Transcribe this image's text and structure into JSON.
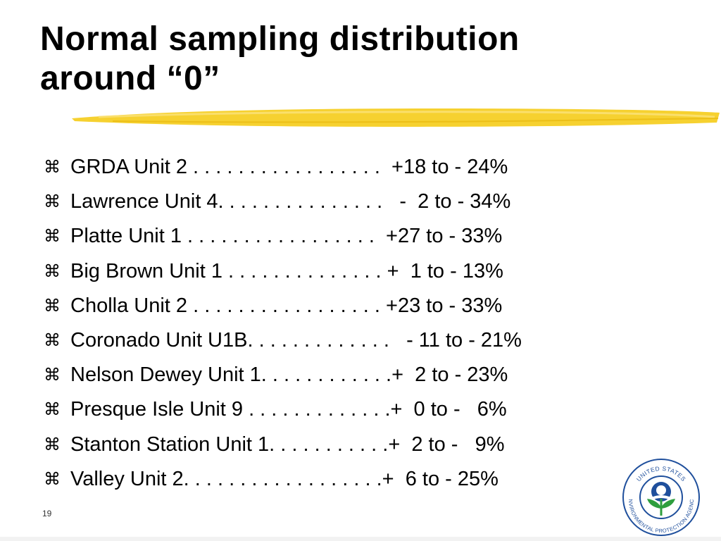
{
  "slide": {
    "title_line1": "Normal sampling distribution",
    "title_line2": "around “0”",
    "bullet_glyph": "⌘",
    "items": [
      "GRDA Unit 2 . . . . . . . . . . . . . . . . .  +18 to - 24%",
      "Lawrence Unit 4. . . . . . . . . . . . . . .   -  2 to - 34%",
      "Platte Unit 1 . . . . . . . . . . . . . . . . .  +27 to - 33%",
      "Big Brown Unit 1 . . . . . . . . . . . . . . +  1 to - 13%",
      "Cholla Unit 2 . . . . . . . . . . . . . . . . . +23 to - 33%",
      "Coronado Unit U1B. . . . . . . . . . . . .   - 11 to - 21%",
      "Nelson Dewey Unit 1. . . . . . . . . . . .+  2 to - 23%",
      "Presque Isle Unit 9 . . . . . . . . . . . . .+  0 to -   6%",
      "Stanton Station Unit 1. . . . . . . . . . .+  2 to -   9%",
      "Valley Unit 2. . . . . . . . . . . . . . . . . .+  6 to - 25%"
    ],
    "slide_number": "19"
  },
  "logo": {
    "text_top": "UNITED STATES",
    "text_bottom": "ENVIRONMENTAL PROTECTION AGENCY",
    "colors": {
      "ring": "#1f4f9c",
      "leaf": "#2e9e3e",
      "water": "#1f4f9c",
      "sun": "#ffffff"
    }
  },
  "colors": {
    "highlight_stroke": "#f5cc1a",
    "text": "#000000"
  }
}
